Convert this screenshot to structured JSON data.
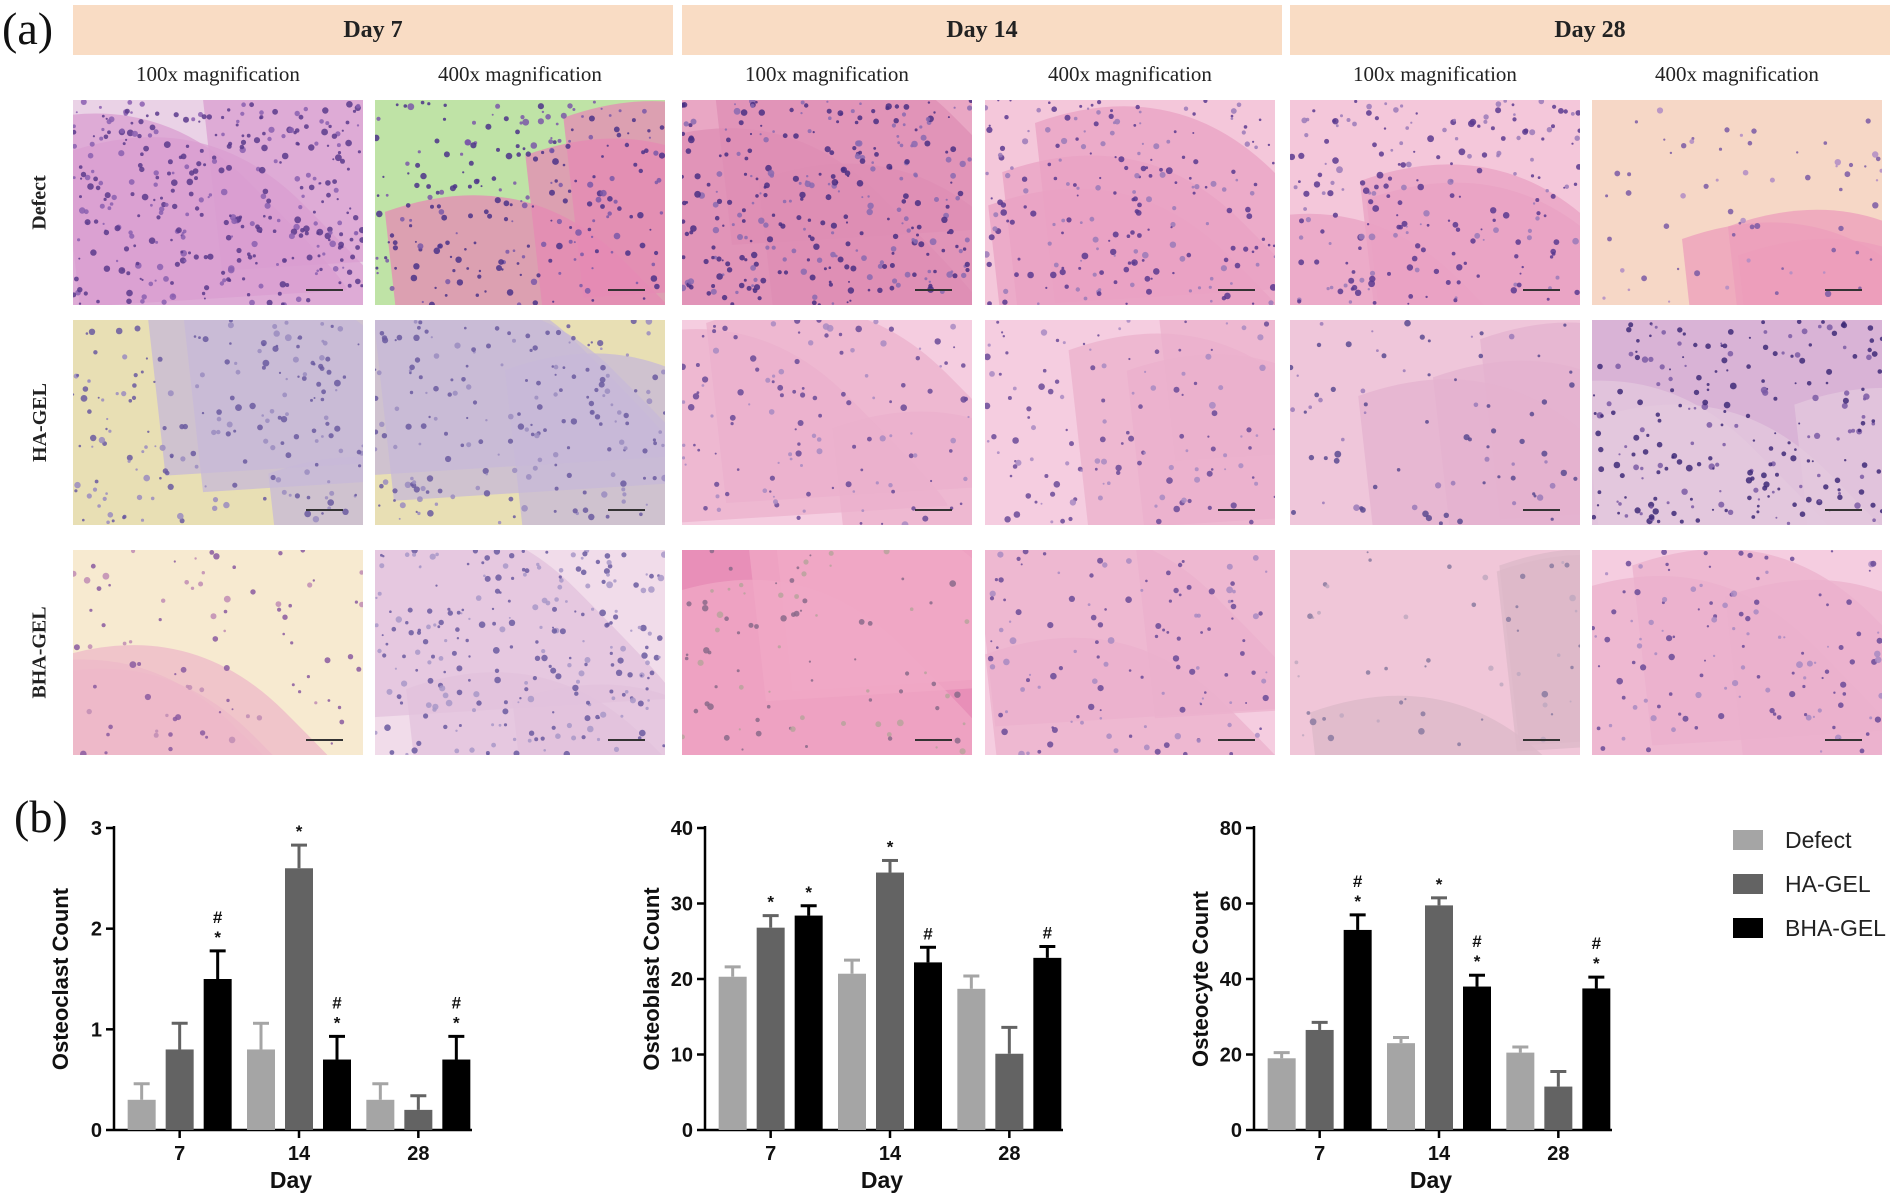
{
  "panel_a": {
    "letter": "(a)",
    "days": [
      "Day 7",
      "Day 14",
      "Day 28"
    ],
    "magnifications": [
      "100x magnification",
      "400x magnification"
    ],
    "rows": [
      "Defect",
      "HA-GEL",
      "BHA-GEL"
    ],
    "header_color": "#f9dcc4",
    "images": [
      {
        "row": "Defect",
        "day": "Day 7",
        "magnification": "100x",
        "tone": "purple-dense"
      },
      {
        "row": "Defect",
        "day": "Day 7",
        "magnification": "400x",
        "tone": "green-purple"
      },
      {
        "row": "Defect",
        "day": "Day 14",
        "magnification": "100x",
        "tone": "purple-pink"
      },
      {
        "row": "Defect",
        "day": "Day 14",
        "magnification": "400x",
        "tone": "pink-purple"
      },
      {
        "row": "Defect",
        "day": "Day 28",
        "magnification": "100x",
        "tone": "pink-purple"
      },
      {
        "row": "Defect",
        "day": "Day 28",
        "magnification": "400x",
        "tone": "pink-cream"
      },
      {
        "row": "HA-GEL",
        "day": "Day 7",
        "magnification": "100x",
        "tone": "lavender-yellow"
      },
      {
        "row": "HA-GEL",
        "day": "Day 7",
        "magnification": "400x",
        "tone": "lavender-yellow"
      },
      {
        "row": "HA-GEL",
        "day": "Day 14",
        "magnification": "100x",
        "tone": "pink-light"
      },
      {
        "row": "HA-GEL",
        "day": "Day 14",
        "magnification": "400x",
        "tone": "pink-light"
      },
      {
        "row": "HA-GEL",
        "day": "Day 28",
        "magnification": "100x",
        "tone": "pink-violet"
      },
      {
        "row": "HA-GEL",
        "day": "Day 28",
        "magnification": "400x",
        "tone": "violet-dense"
      },
      {
        "row": "BHA-GEL",
        "day": "Day 7",
        "magnification": "100x",
        "tone": "cream-pink"
      },
      {
        "row": "BHA-GEL",
        "day": "Day 7",
        "magnification": "400x",
        "tone": "light-pink"
      },
      {
        "row": "BHA-GEL",
        "day": "Day 14",
        "magnification": "100x",
        "tone": "pink-solid"
      },
      {
        "row": "BHA-GEL",
        "day": "Day 14",
        "magnification": "400x",
        "tone": "pink-light"
      },
      {
        "row": "BHA-GEL",
        "day": "Day 28",
        "magnification": "100x",
        "tone": "pink-grey"
      },
      {
        "row": "BHA-GEL",
        "day": "Day 28",
        "magnification": "400x",
        "tone": "pink-light"
      }
    ]
  },
  "panel_b": {
    "letter": "(b)"
  },
  "legend": [
    {
      "label": "Defect",
      "color": "#a5a5a5"
    },
    {
      "label": "HA-GEL",
      "color": "#636363"
    },
    {
      "label": "BHA-GEL",
      "color": "#000000"
    }
  ],
  "chart_data": [
    {
      "type": "bar",
      "ylabel": "Osteoclast Count",
      "xlabel": "Day",
      "categories": [
        "7",
        "14",
        "28"
      ],
      "ylim": [
        0,
        3
      ],
      "yticks": [
        0,
        1,
        2,
        3
      ],
      "series": [
        {
          "name": "Defect",
          "values": [
            0.3,
            0.8,
            0.3
          ],
          "errors": [
            0.16,
            0.26,
            0.16
          ],
          "annotations": [
            "",
            "",
            ""
          ]
        },
        {
          "name": "HA-GEL",
          "values": [
            0.8,
            2.6,
            0.2
          ],
          "errors": [
            0.26,
            0.23,
            0.14
          ],
          "annotations": [
            "",
            "*",
            ""
          ]
        },
        {
          "name": "BHA-GEL",
          "values": [
            1.5,
            0.7,
            0.7
          ],
          "errors": [
            0.28,
            0.23,
            0.23
          ],
          "annotations": [
            "#\n*",
            "#\n*",
            "#\n*"
          ]
        }
      ]
    },
    {
      "type": "bar",
      "ylabel": "Osteoblast Count",
      "xlabel": "Day",
      "categories": [
        "7",
        "14",
        "28"
      ],
      "ylim": [
        0,
        40
      ],
      "yticks": [
        0,
        10,
        20,
        30,
        40
      ],
      "series": [
        {
          "name": "Defect",
          "values": [
            20.3,
            20.7,
            18.7
          ],
          "errors": [
            1.3,
            1.8,
            1.7
          ],
          "annotations": [
            "",
            "",
            ""
          ]
        },
        {
          "name": "HA-GEL",
          "values": [
            26.8,
            34.1,
            10.1
          ],
          "errors": [
            1.6,
            1.6,
            3.5
          ],
          "annotations": [
            "*",
            "*",
            ""
          ]
        },
        {
          "name": "BHA-GEL",
          "values": [
            28.4,
            22.2,
            22.8
          ],
          "errors": [
            1.3,
            2.0,
            1.5
          ],
          "annotations": [
            "*",
            "#",
            "#"
          ]
        }
      ]
    },
    {
      "type": "bar",
      "ylabel": "Osteocyte Count",
      "xlabel": "Day",
      "categories": [
        "7",
        "14",
        "28"
      ],
      "ylim": [
        0,
        80
      ],
      "yticks": [
        0,
        20,
        40,
        60,
        80
      ],
      "series": [
        {
          "name": "Defect",
          "values": [
            19,
            23,
            20.5
          ],
          "errors": [
            1.5,
            1.5,
            1.5
          ],
          "annotations": [
            "",
            "",
            ""
          ]
        },
        {
          "name": "HA-GEL",
          "values": [
            26.5,
            59.5,
            11.5
          ],
          "errors": [
            2.0,
            2.0,
            4.0
          ],
          "annotations": [
            "",
            "*",
            ""
          ]
        },
        {
          "name": "BHA-GEL",
          "values": [
            53,
            38,
            37.5
          ],
          "errors": [
            4.0,
            3.0,
            3.0
          ],
          "annotations": [
            "#\n*",
            "#\n*",
            "#\n*"
          ]
        }
      ]
    }
  ]
}
